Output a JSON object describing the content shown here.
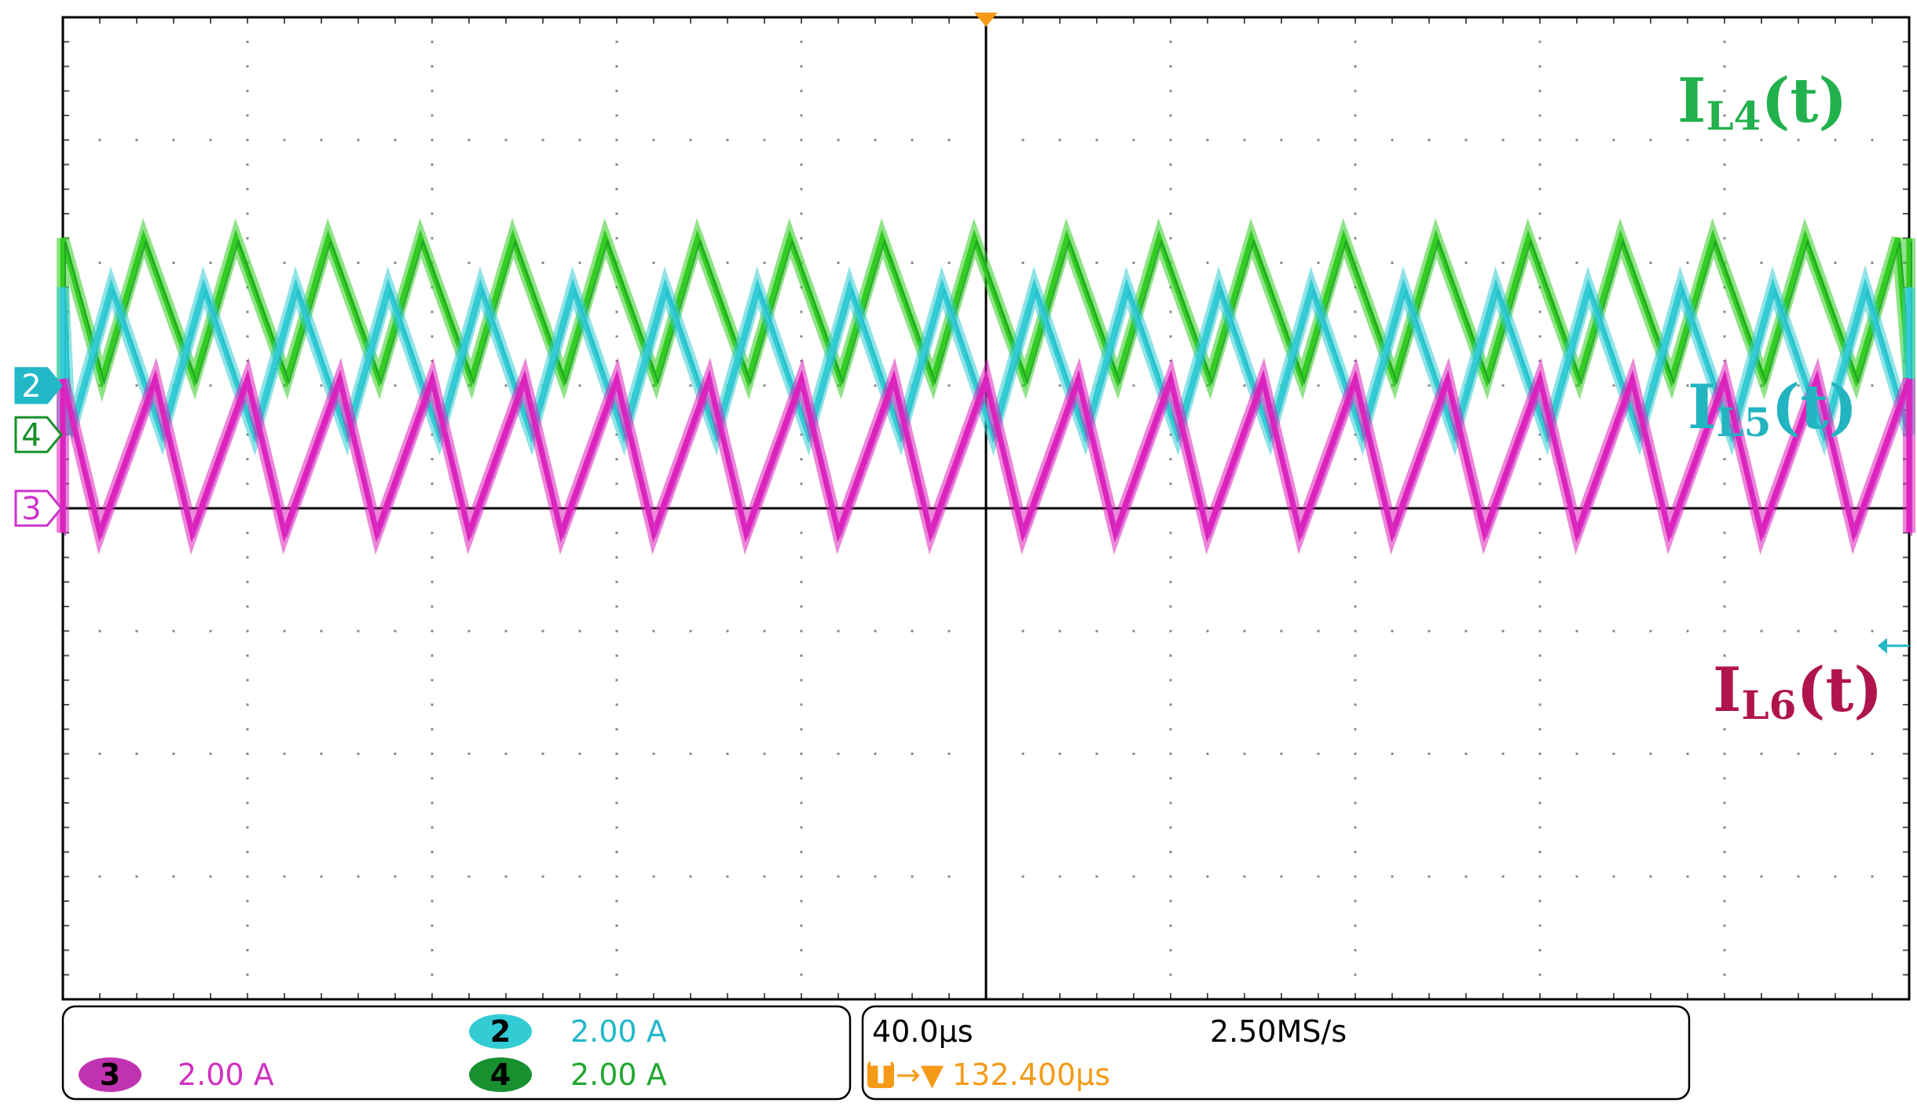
{
  "chart_data": {
    "type": "line",
    "title": "",
    "xlabel": "",
    "ylabel": "",
    "grid": true,
    "divisions": {
      "x": 10,
      "y": 8
    },
    "xlim": [
      0,
      400
    ],
    "x_unit": "µs",
    "series": [
      {
        "channel": "4",
        "name_main": "I",
        "name_sub": "L4",
        "name_suffix": "(t)",
        "color": "#33cc22",
        "label_color": "#22b14c",
        "marker_color": "#18902a",
        "scale": "2.00 A",
        "offset_div": 0.6,
        "period_us": 20,
        "t_peak_us": 17.5,
        "peak_div": 2.2,
        "valley_div": 1.05
      },
      {
        "channel": "2",
        "name_main": "I",
        "name_sub": "L5",
        "name_suffix": "(t)",
        "color": "#33ccd4",
        "label_color": "#22b4c0",
        "marker_color": "#22b8c8",
        "scale": "2.00 A",
        "offset_div": 1.0,
        "period_us": 20,
        "t_peak_us": 10.5,
        "peak_div": 1.8,
        "valley_div": 0.6
      },
      {
        "channel": "3",
        "name_main": "I",
        "name_sub": "L6",
        "name_suffix": "(t)",
        "color": "#dd22bb",
        "label_color": "#b0144c",
        "marker_color": "#cc33cc",
        "scale": "2.00 A",
        "offset_div": 0.0,
        "period_us": 20,
        "t_peak_us": 0,
        "peak_div": 1.05,
        "valley_div": -0.2
      }
    ]
  },
  "readout": {
    "timebase": "40.0μs",
    "sample_rate": "2.50MS/s",
    "trigger_position": "132.400μs",
    "trigger_badge": "T",
    "trigger_arrow": "→▼"
  }
}
